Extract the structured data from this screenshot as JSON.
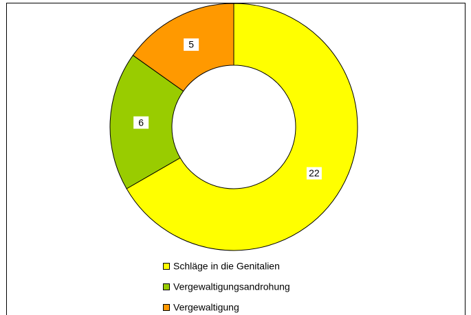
{
  "chart_data": {
    "type": "donut",
    "categories": [
      "Schläge in die Genitalien",
      "Vergewaltigungsandrohung",
      "Vergewaltigung"
    ],
    "values": [
      22,
      6,
      5
    ],
    "colors": [
      "#ffff00",
      "#99cc00",
      "#ff9900"
    ],
    "legend": "bottom"
  }
}
